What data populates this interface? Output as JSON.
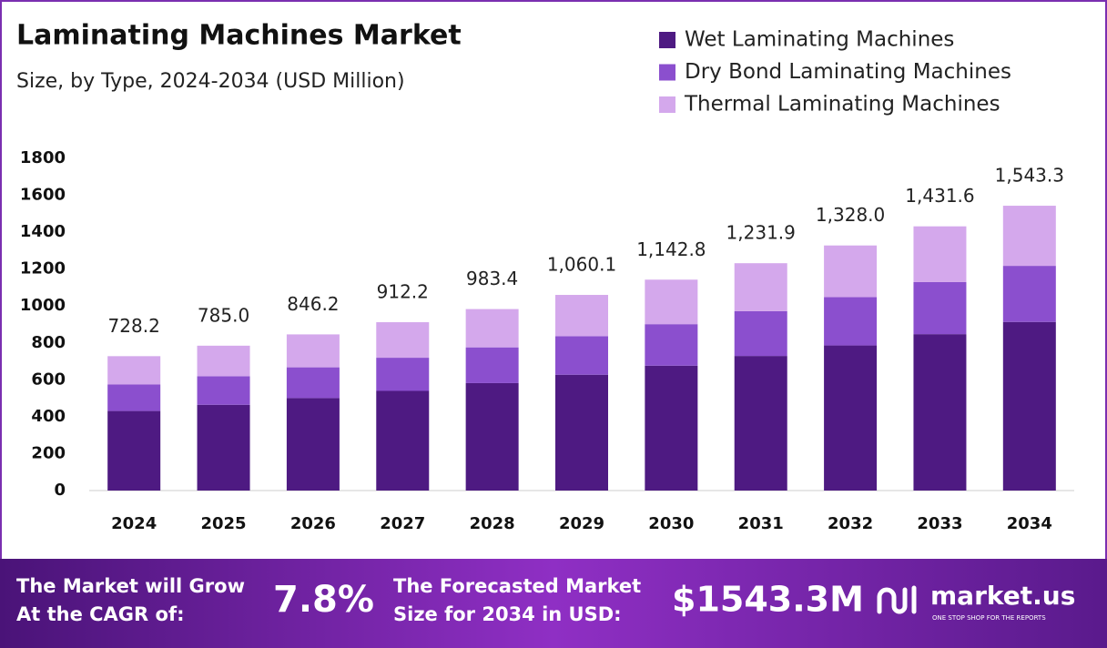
{
  "chart_data": {
    "type": "stacked_bar",
    "title": "Laminating Machines Market",
    "subtitle": "Size, by Type, 2024-2034 (USD Million)",
    "categories": [
      "2024",
      "2025",
      "2026",
      "2027",
      "2028",
      "2029",
      "2030",
      "2031",
      "2032",
      "2033",
      "2034"
    ],
    "series": [
      {
        "name": "Wet Laminating Machines",
        "color": "#4e1a82",
        "values": [
          431.1,
          464.7,
          501.0,
          540.0,
          582.2,
          627.6,
          676.5,
          729.3,
          786.2,
          847.5,
          913.6
        ]
      },
      {
        "name": "Dry Bond Laminating Machines",
        "color": "#8b4fce",
        "values": [
          143.5,
          154.6,
          166.7,
          179.7,
          193.7,
          208.8,
          225.1,
          242.7,
          261.6,
          282.0,
          304.0
        ]
      },
      {
        "name": "Thermal Laminating Machines",
        "color": "#d4a8ec",
        "values": [
          153.6,
          165.7,
          178.5,
          192.5,
          207.5,
          223.7,
          241.2,
          259.9,
          280.2,
          302.1,
          325.7
        ]
      }
    ],
    "totals": [
      728.2,
      785.0,
      846.2,
      912.2,
      983.4,
      1060.1,
      1142.8,
      1231.9,
      1328.0,
      1431.6,
      1543.3
    ],
    "total_labels": [
      "728.2",
      "785.0",
      "846.2",
      "912.2",
      "983.4",
      "1,060.1",
      "1,142.8",
      "1,231.9",
      "1,328.0",
      "1,431.6",
      "1,543.3"
    ],
    "ylim": [
      0,
      1800
    ],
    "yticks": [
      0,
      200,
      400,
      600,
      800,
      1000,
      1200,
      1400,
      1600,
      1800
    ],
    "grid": false,
    "legend": "top-right"
  },
  "footer": {
    "cagr_text_1": "The Market will Grow",
    "cagr_text_2": "At the CAGR of:",
    "cagr": "7.8%",
    "forecast_text_1": "The Forecasted Market",
    "forecast_text_2": "Size for 2034 in USD:",
    "forecast": "$1543.3M",
    "brand": "market.us",
    "tagline": "ONE STOP SHOP FOR THE REPORTS"
  }
}
